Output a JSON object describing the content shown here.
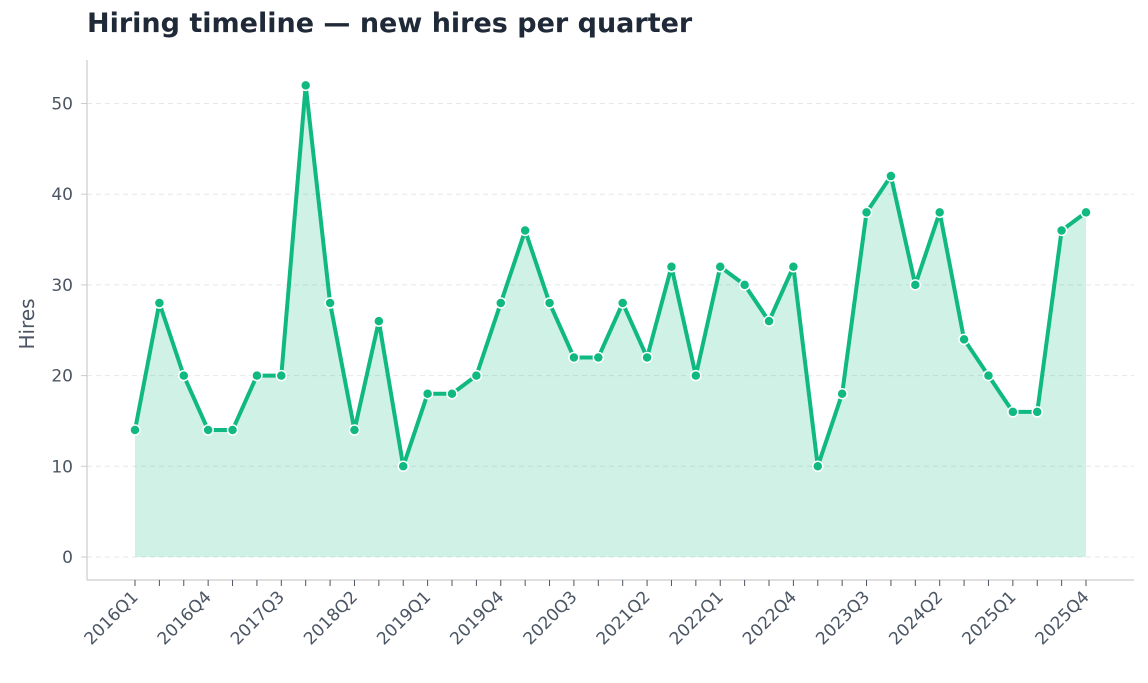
{
  "chart_data": {
    "type": "area",
    "title": "Hiring timeline — new hires per quarter",
    "xlabel": "",
    "ylabel": "Hires",
    "ylim": [
      0,
      55
    ],
    "yticks": [
      0,
      10,
      20,
      30,
      40,
      50
    ],
    "grid": "horizontal dashed",
    "legend": "none",
    "x": [
      "2016Q1",
      "2016Q2",
      "2016Q3",
      "2016Q4",
      "2017Q1",
      "2017Q2",
      "2017Q3",
      "2017Q4",
      "2018Q1",
      "2018Q2",
      "2018Q3",
      "2018Q4",
      "2019Q1",
      "2019Q2",
      "2019Q3",
      "2019Q4",
      "2020Q1",
      "2020Q2",
      "2020Q3",
      "2020Q4",
      "2021Q1",
      "2021Q2",
      "2021Q3",
      "2021Q4",
      "2022Q1",
      "2022Q2",
      "2022Q3",
      "2022Q4",
      "2023Q1",
      "2023Q2",
      "2023Q3",
      "2023Q4",
      "2024Q1",
      "2024Q2",
      "2024Q3",
      "2024Q4",
      "2025Q1",
      "2025Q2",
      "2025Q3",
      "2025Q4"
    ],
    "x_tick_labels": [
      "2016Q1",
      "2016Q4",
      "2017Q3",
      "2018Q2",
      "2019Q1",
      "2019Q4",
      "2020Q3",
      "2021Q2",
      "2022Q1",
      "2022Q4",
      "2023Q3",
      "2024Q2",
      "2025Q1",
      "2025Q4"
    ],
    "values": [
      14,
      28,
      20,
      14,
      14,
      20,
      20,
      52,
      28,
      14,
      26,
      10,
      18,
      18,
      20,
      28,
      36,
      28,
      22,
      22,
      28,
      22,
      32,
      20,
      32,
      30,
      26,
      32,
      10,
      18,
      38,
      42,
      30,
      38,
      24,
      20,
      16,
      16,
      36,
      38
    ],
    "colors": {
      "line": "#10b981",
      "fill": "#10b981",
      "marker_edge": "#ffffff",
      "grid": "#e5e7eb",
      "axis": "#cccccc",
      "text": "#4b5563"
    }
  }
}
